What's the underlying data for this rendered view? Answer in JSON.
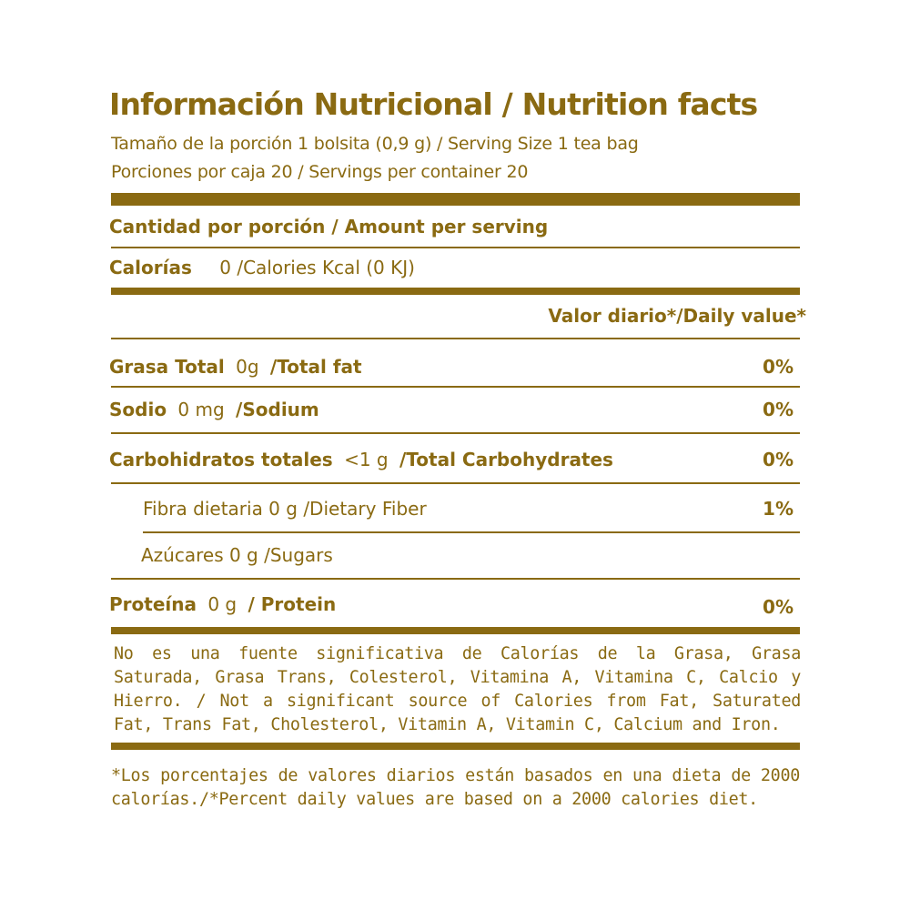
{
  "header": {
    "title": "Información Nutricional / Nutrition facts",
    "serving_size": "Tamaño de la porción 1 bolsita (0,9 g) / Serving Size 1 tea bag",
    "servings": "Porciones por caja 20 / Servings per container 20"
  },
  "amount_per_serving": "Cantidad por  porción / Amount per serving",
  "calories": {
    "label": "Calorías",
    "value": "0 /Calories Kcal (0 KJ)"
  },
  "daily_value_header": "Valor diario*/Daily value*",
  "nutrients": [
    {
      "label_es": "Grasa Total",
      "amount": "0g",
      "label_en": "/Total fat",
      "dv": "0%"
    },
    {
      "label_es": "Sodio",
      "amount": "0 mg",
      "label_en": "/Sodium",
      "dv": "0%"
    },
    {
      "label_es": "Carbohidratos totales",
      "amount": "<1 g",
      "label_en": "/Total Carbohydrates",
      "dv": "0%"
    },
    {
      "label": "Fibra dietaria 0 g /Dietary Fiber",
      "dv": "1%"
    },
    {
      "label": "Azúcares 0 g /Sugars",
      "dv": ""
    },
    {
      "label_es": "Proteína",
      "amount": "0 g",
      "label_en": "/ Protein",
      "dv": "0%"
    }
  ],
  "footnote_not_significant": "No es una fuente significativa de Calorías de la Grasa, Grasa Saturada, Grasa Trans, Colesterol, Vitamina A, Vitamina C, Calcio y Hierro. / Not a significant source of Calories from Fat, Saturated Fat, Trans Fat, Cholesterol, Vitamin A, Vitamin C, Calcium and Iron.",
  "footnote_daily_values": "*Los porcentajes de valores diarios están basados en una dieta de 2000 calorías./*Percent daily values are based on a 2000 calories diet.",
  "colors": {
    "text": "#8a6a12",
    "background": "#ffffff"
  }
}
